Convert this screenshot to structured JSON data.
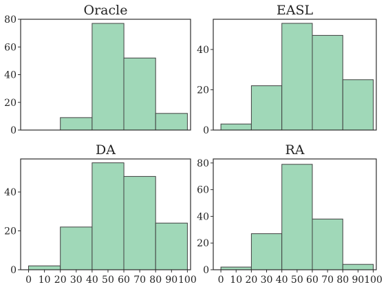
{
  "chart_data": [
    {
      "type": "bar",
      "title": "Oracle",
      "bin_edges": [
        0,
        20,
        40,
        60,
        80,
        100
      ],
      "values": [
        0,
        9,
        77,
        52,
        12
      ],
      "ylim": [
        0,
        80
      ],
      "yticks": [
        0,
        20,
        40,
        60,
        80
      ],
      "bar_color": "#a0d8b8",
      "grid": false
    },
    {
      "type": "bar",
      "title": "EASL",
      "bin_edges": [
        0,
        20,
        40,
        60,
        80,
        100
      ],
      "values": [
        3,
        22,
        53,
        47,
        25
      ],
      "ylim": [
        0,
        55
      ],
      "yticks": [
        0,
        20,
        40
      ],
      "bar_color": "#a0d8b8",
      "grid": false
    },
    {
      "type": "bar",
      "title": "DA",
      "bin_edges": [
        0,
        20,
        40,
        60,
        80,
        100
      ],
      "values": [
        2,
        22,
        55,
        48,
        24
      ],
      "ylim": [
        0,
        57
      ],
      "yticks": [
        0,
        20,
        40
      ],
      "xticks": [
        0,
        10,
        20,
        30,
        40,
        50,
        60,
        70,
        80,
        90,
        100
      ],
      "bar_color": "#a0d8b8",
      "grid": false
    },
    {
      "type": "bar",
      "title": "RA",
      "bin_edges": [
        0,
        20,
        40,
        60,
        80,
        100
      ],
      "values": [
        2,
        27,
        79,
        38,
        4
      ],
      "ylim": [
        0,
        83
      ],
      "yticks": [
        0,
        20,
        40,
        60,
        80
      ],
      "xticks": [
        0,
        10,
        20,
        30,
        40,
        50,
        60,
        70,
        80,
        90,
        100
      ],
      "bar_color": "#a0d8b8",
      "grid": false
    }
  ]
}
